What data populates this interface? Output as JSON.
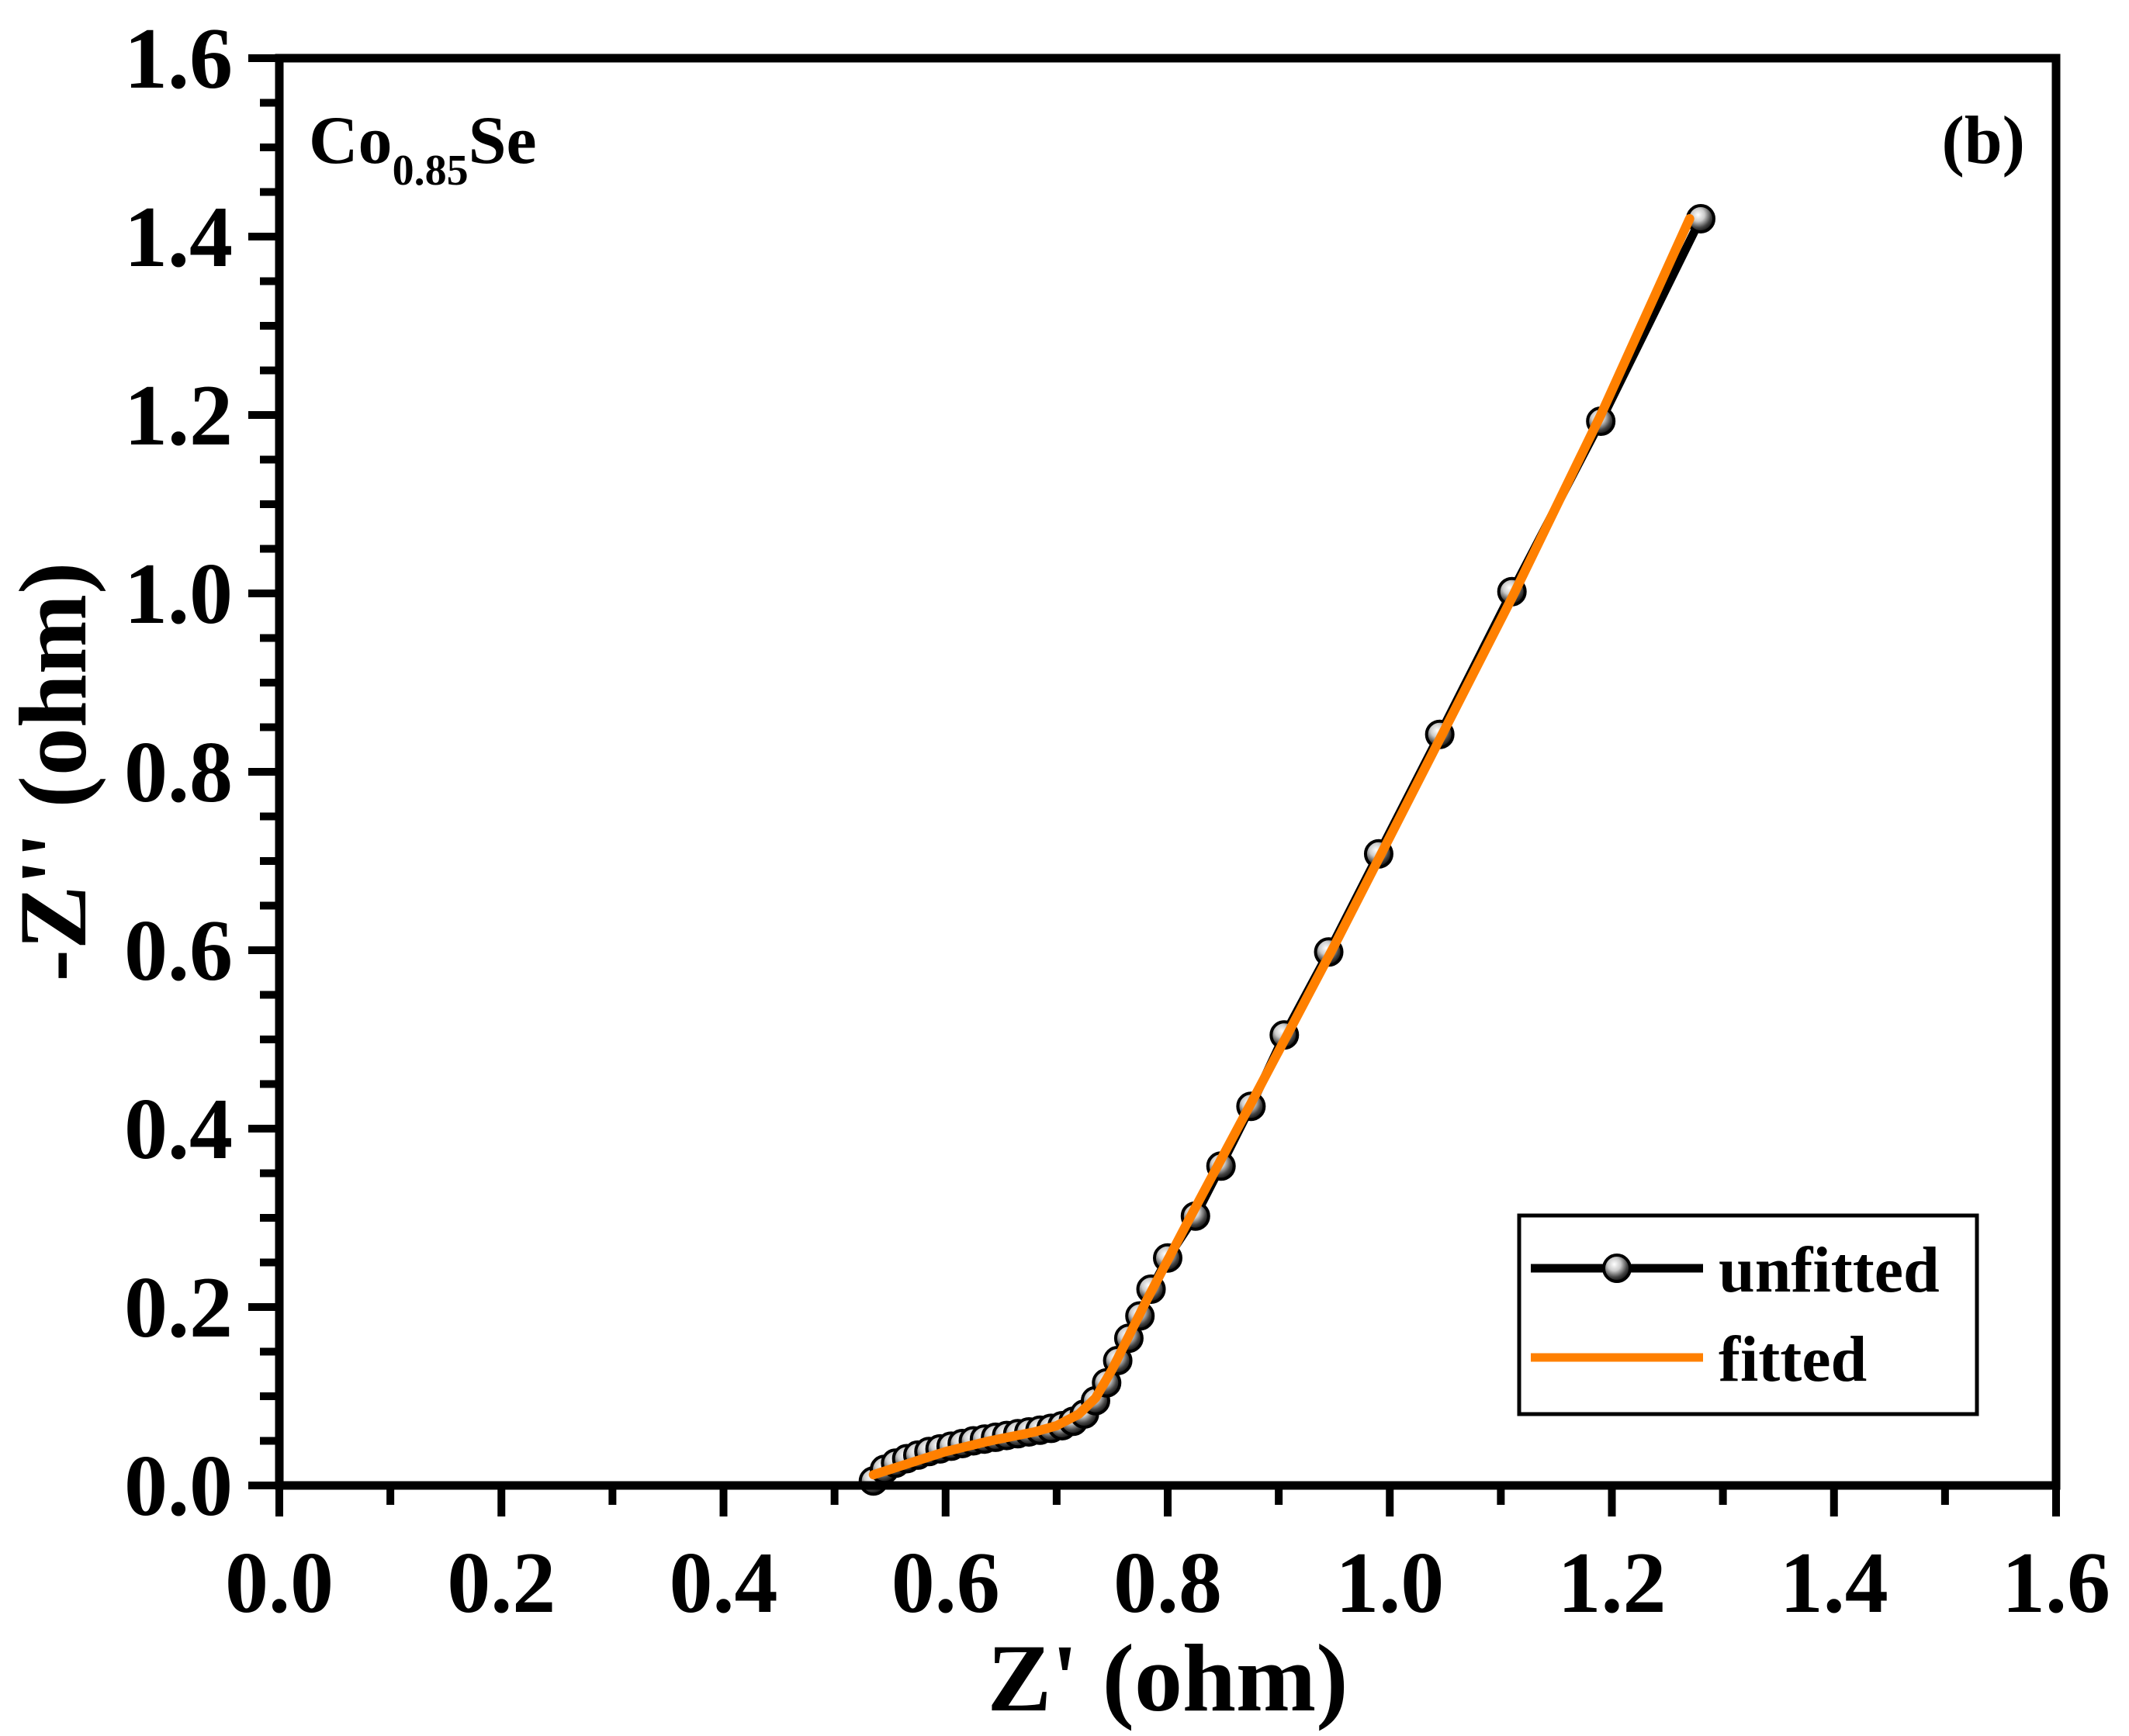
{
  "chart_data": {
    "type": "line",
    "title": "",
    "xlabel": "Z' (ohm)",
    "ylabel": "-Z'' (ohm)",
    "xlim": [
      0.0,
      1.6
    ],
    "ylim": [
      0.0,
      1.6
    ],
    "xticks": [
      "0.0",
      "0.2",
      "0.4",
      "0.6",
      "0.8",
      "1.0",
      "1.2",
      "1.4",
      "1.6"
    ],
    "yticks": [
      "0.0",
      "0.2",
      "0.4",
      "0.6",
      "0.8",
      "1.0",
      "1.2",
      "1.4",
      "1.6"
    ],
    "sample_label": {
      "base": "Co",
      "subscript": "0.85",
      "suffix": "Se"
    },
    "panel_label": "(b)",
    "legend_position": "bottom-right",
    "grid": false,
    "series": [
      {
        "name": "unfitted",
        "color": "#000000",
        "marker": "circle",
        "x": [
          0.535,
          0.545,
          0.555,
          0.565,
          0.575,
          0.585,
          0.595,
          0.605,
          0.615,
          0.625,
          0.635,
          0.645,
          0.655,
          0.665,
          0.675,
          0.685,
          0.695,
          0.705,
          0.715,
          0.725,
          0.735,
          0.745,
          0.755,
          0.765,
          0.775,
          0.785,
          0.8,
          0.825,
          0.848,
          0.875,
          0.905,
          0.945,
          0.99,
          1.045,
          1.11,
          1.19,
          1.28
        ],
        "y": [
          0.005,
          0.018,
          0.025,
          0.03,
          0.034,
          0.038,
          0.041,
          0.044,
          0.047,
          0.05,
          0.052,
          0.054,
          0.056,
          0.058,
          0.06,
          0.062,
          0.064,
          0.067,
          0.072,
          0.08,
          0.095,
          0.115,
          0.14,
          0.165,
          0.19,
          0.22,
          0.255,
          0.302,
          0.358,
          0.425,
          0.505,
          0.598,
          0.708,
          0.842,
          1.002,
          1.193,
          1.42
        ]
      },
      {
        "name": "fitted",
        "color": "#ff8000",
        "marker": "none",
        "x": [
          0.535,
          0.56,
          0.6,
          0.64,
          0.68,
          0.7,
          0.72,
          0.735,
          0.75,
          0.76,
          0.78,
          0.82,
          0.88,
          0.95,
          1.03,
          1.11,
          1.19,
          1.27
        ],
        "y": [
          0.012,
          0.022,
          0.038,
          0.05,
          0.06,
          0.067,
          0.08,
          0.098,
          0.13,
          0.155,
          0.205,
          0.3,
          0.44,
          0.605,
          0.8,
          0.995,
          1.2,
          1.42
        ]
      }
    ]
  }
}
